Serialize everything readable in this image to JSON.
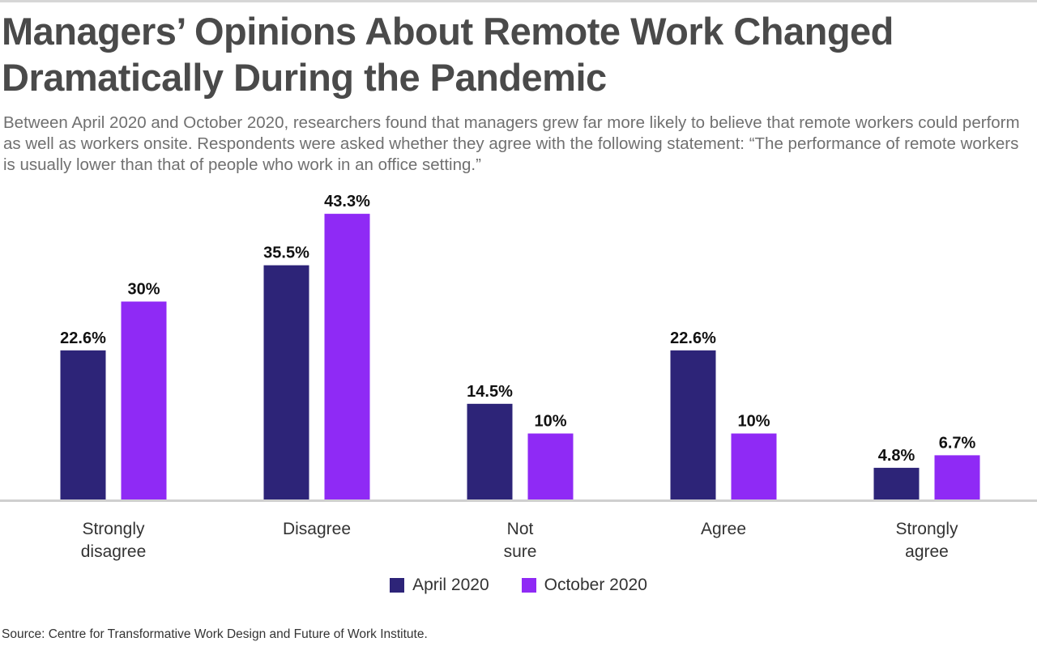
{
  "chart_data": {
    "type": "bar",
    "title": "Managers’ Opinions About Remote Work Changed Dramatically During the Pandemic",
    "subtitle": "Between April 2020 and October 2020, researchers found that managers grew far more likely to believe that remote workers could perform as well as workers onsite. Respondents were asked whether they agree with the following statement: “The performance of remote workers is usually lower than that of people who work in an office setting.”",
    "categories": [
      "Strongly disagree",
      "Disagree",
      "Not sure",
      "Agree",
      "Strongly agree"
    ],
    "series": [
      {
        "name": "April 2020",
        "color": "#2d2478",
        "values": [
          22.6,
          35.5,
          14.5,
          22.6,
          4.8
        ],
        "labels": [
          "22.6%",
          "35.5%",
          "14.5%",
          "22.6%",
          "4.8%"
        ]
      },
      {
        "name": "October 2020",
        "color": "#8f2af5",
        "values": [
          30,
          43.3,
          10,
          10,
          6.7
        ],
        "labels": [
          "30%",
          "43.3%",
          "10%",
          "10%",
          "6.7%"
        ]
      }
    ],
    "ylim": [
      0,
      45
    ],
    "grid": false,
    "legend_position": "bottom-center",
    "source": "Source: Centre for Transformative Work Design and Future of Work Institute."
  }
}
